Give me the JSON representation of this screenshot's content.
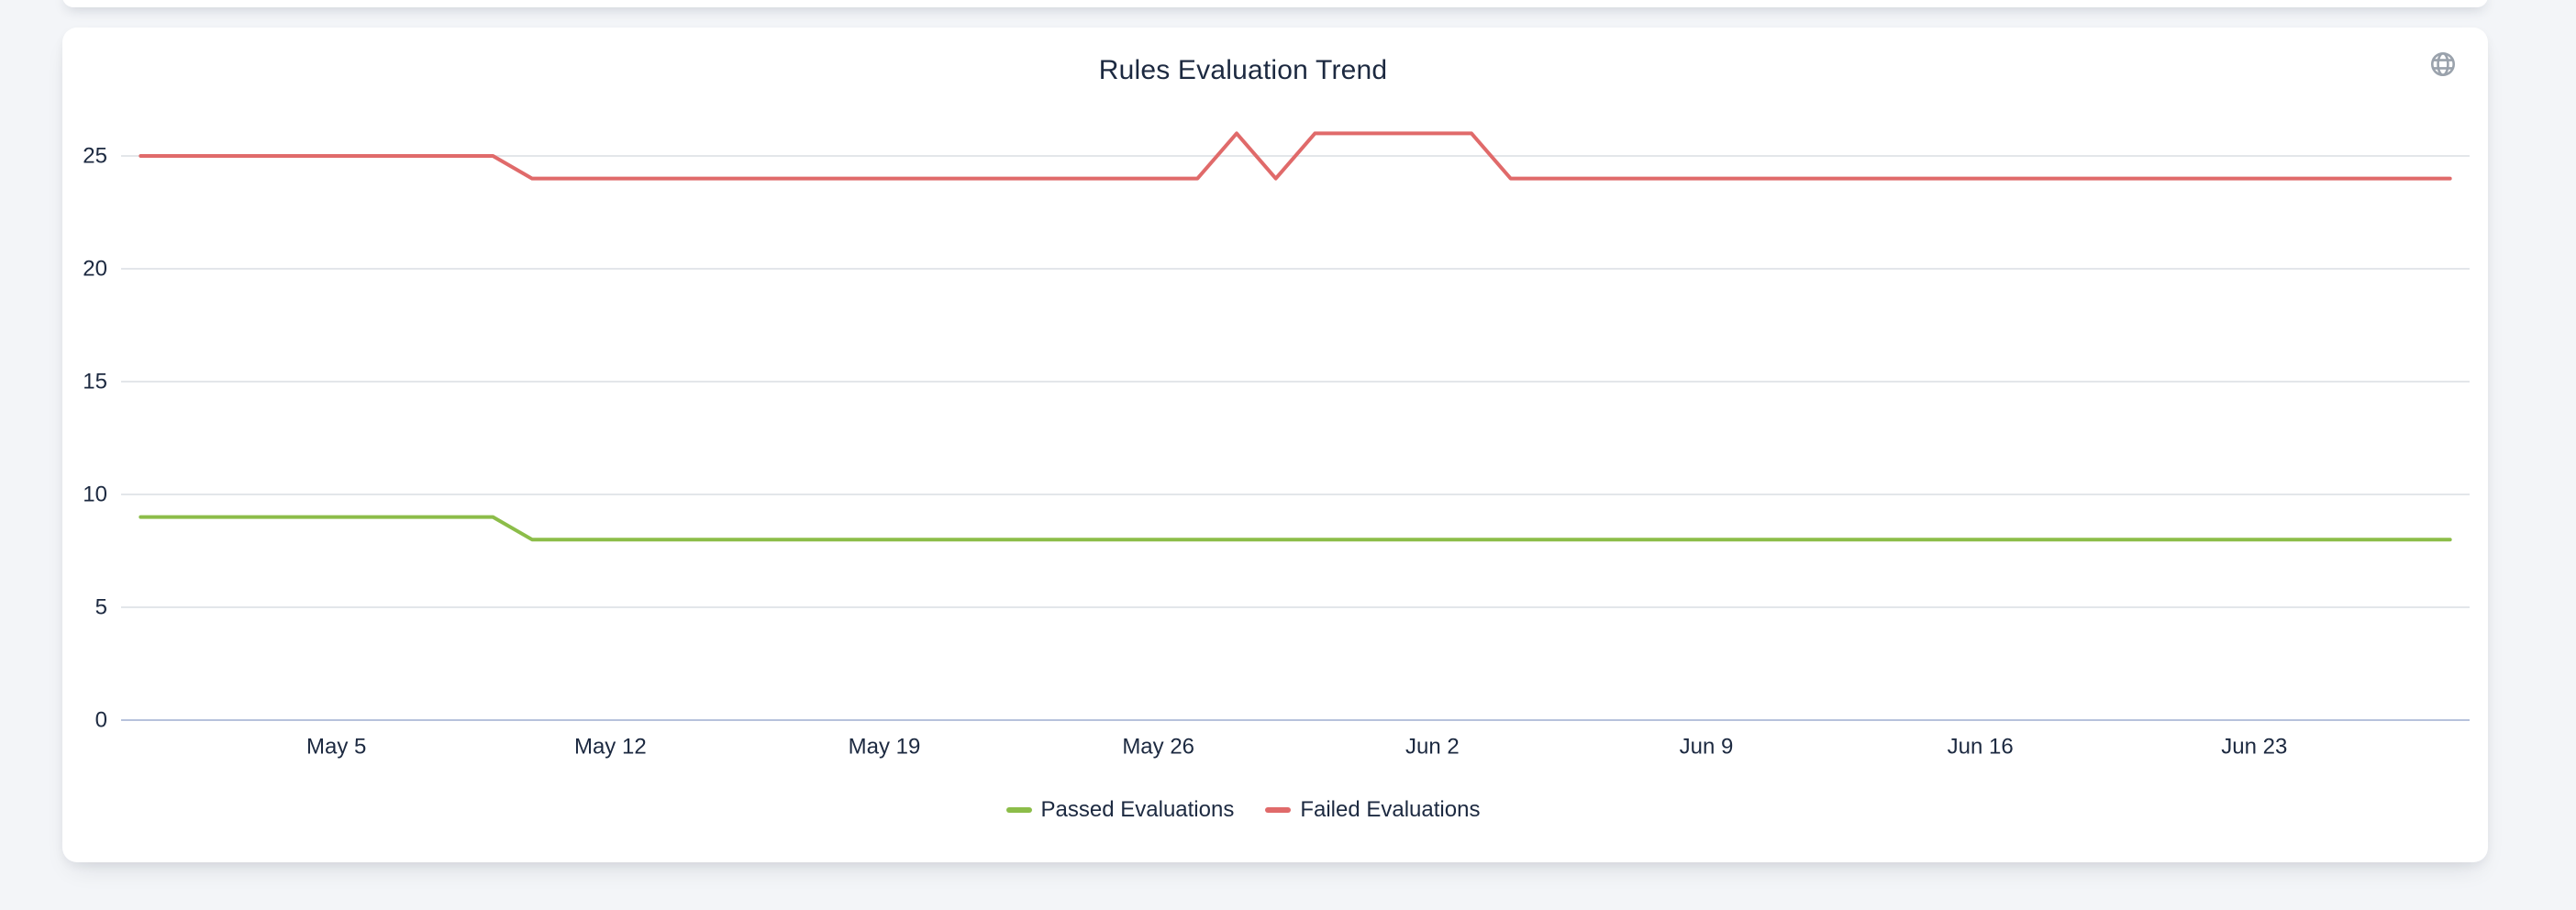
{
  "page": {
    "background_color": "#f3f5f8"
  },
  "card": {
    "background_color": "#ffffff"
  },
  "icons": {
    "toolbox": "globe-icon",
    "toolbox_color": "#9aa2ac"
  },
  "chart_data": {
    "type": "line",
    "title": "Rules Evaluation Trend",
    "legend_position": "bottom",
    "grid": "horizontal",
    "label_color": "#1c2940",
    "grid_color": "#e3e6ea",
    "axis_line_color": "#b7c2dc",
    "ylim": [
      0,
      27
    ],
    "y_ticks": [
      0,
      5,
      10,
      15,
      20,
      25
    ],
    "x_tick_labels": [
      "May 5",
      "May 12",
      "May 19",
      "May 26",
      "Jun 2",
      "Jun 9",
      "Jun 16",
      "Jun 23"
    ],
    "x_tick_indices": [
      5,
      12,
      19,
      26,
      33,
      40,
      47,
      54
    ],
    "x": [
      "Apr 30",
      "May 1",
      "May 2",
      "May 3",
      "May 4",
      "May 5",
      "May 6",
      "May 7",
      "May 8",
      "May 9",
      "May 10",
      "May 11",
      "May 12",
      "May 13",
      "May 14",
      "May 15",
      "May 16",
      "May 17",
      "May 18",
      "May 19",
      "May 20",
      "May 21",
      "May 22",
      "May 23",
      "May 24",
      "May 25",
      "May 26",
      "May 27",
      "May 28",
      "May 29",
      "May 30",
      "May 31",
      "Jun 1",
      "Jun 2",
      "Jun 3",
      "Jun 4",
      "Jun 5",
      "Jun 6",
      "Jun 7",
      "Jun 8",
      "Jun 9",
      "Jun 10",
      "Jun 11",
      "Jun 12",
      "Jun 13",
      "Jun 14",
      "Jun 15",
      "Jun 16",
      "Jun 17",
      "Jun 18",
      "Jun 19",
      "Jun 20",
      "Jun 21",
      "Jun 22",
      "Jun 23",
      "Jun 24",
      "Jun 25",
      "Jun 26",
      "Jun 27",
      "Jun 28"
    ],
    "series": [
      {
        "name": "Passed Evaluations",
        "color": "#8cbd49",
        "values": [
          9,
          9,
          9,
          9,
          9,
          9,
          9,
          9,
          9,
          9,
          8,
          8,
          8,
          8,
          8,
          8,
          8,
          8,
          8,
          8,
          8,
          8,
          8,
          8,
          8,
          8,
          8,
          8,
          8,
          8,
          8,
          8,
          8,
          8,
          8,
          8,
          8,
          8,
          8,
          8,
          8,
          8,
          8,
          8,
          8,
          8,
          8,
          8,
          8,
          8,
          8,
          8,
          8,
          8,
          8,
          8,
          8,
          8,
          8,
          8
        ]
      },
      {
        "name": "Failed Evaluations",
        "color": "#e06a6a",
        "values": [
          25,
          25,
          25,
          25,
          25,
          25,
          25,
          25,
          25,
          25,
          24,
          24,
          24,
          24,
          24,
          24,
          24,
          24,
          24,
          24,
          24,
          24,
          24,
          24,
          24,
          24,
          24,
          24,
          26,
          24,
          26,
          26,
          26,
          26,
          26,
          24,
          24,
          24,
          24,
          24,
          24,
          24,
          24,
          24,
          24,
          24,
          24,
          24,
          24,
          24,
          24,
          24,
          24,
          24,
          24,
          24,
          24,
          24,
          24,
          24
        ]
      }
    ]
  }
}
